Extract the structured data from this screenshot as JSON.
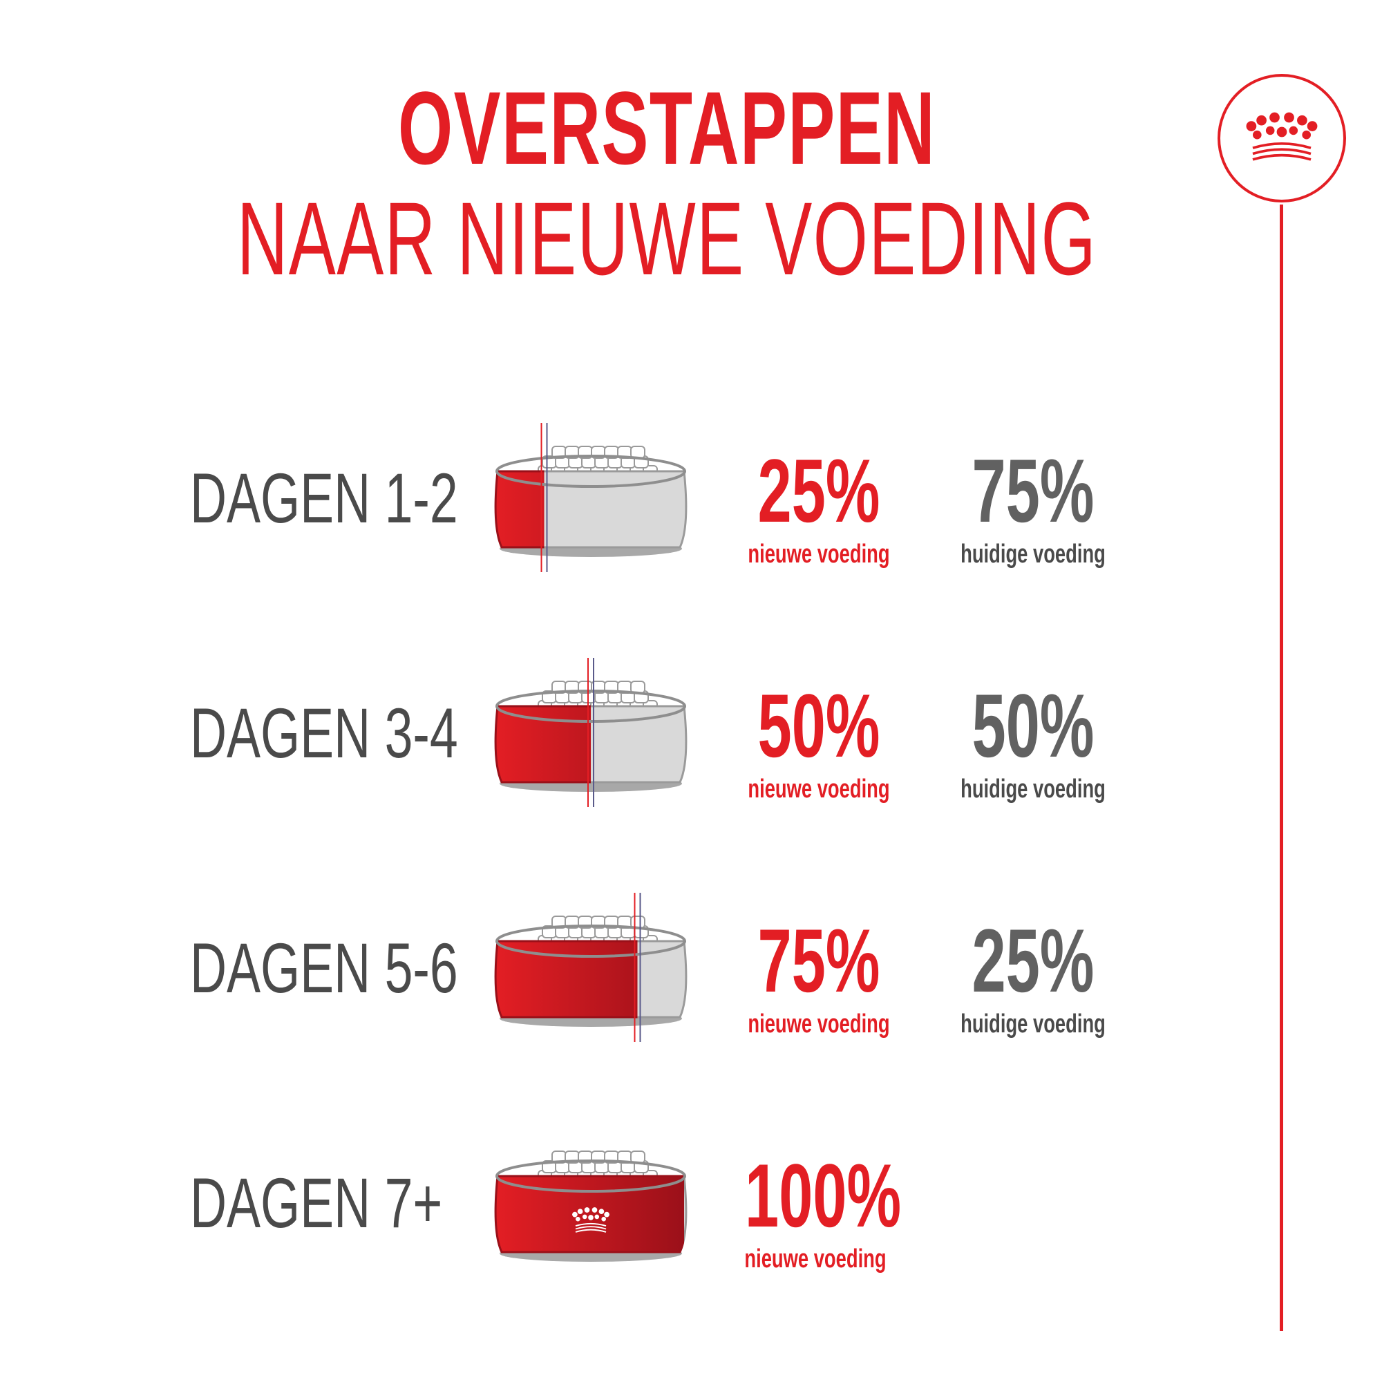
{
  "title": {
    "main": "OVERSTAPPEN",
    "sub": "NAAR NIEUWE VOEDING"
  },
  "colors": {
    "brand_red": "#e31e24",
    "dark_red": "#9a1019",
    "gray_text": "#4a4a4a",
    "gray_pct": "#616161",
    "bowl_gray": "#d9d9d9"
  },
  "logo": {
    "icon": "crown-icon"
  },
  "rows": [
    {
      "label": "DAGEN 1-2",
      "new_pct": "25%",
      "new_caption": "nieuwe voeding",
      "new_fraction": 0.25,
      "cur_pct": "75%",
      "cur_caption": "huidige voeding"
    },
    {
      "label": "DAGEN 3-4",
      "new_pct": "50%",
      "new_caption": "nieuwe voeding",
      "new_fraction": 0.5,
      "cur_pct": "50%",
      "cur_caption": "huidige voeding"
    },
    {
      "label": "DAGEN 5-6",
      "new_pct": "75%",
      "new_caption": "nieuwe voeding",
      "new_fraction": 0.75,
      "cur_pct": "25%",
      "cur_caption": "huidige voeding"
    },
    {
      "label": "DAGEN 7+",
      "new_pct": "100%",
      "new_caption": "nieuwe voeding",
      "new_fraction": 1.0
    }
  ]
}
